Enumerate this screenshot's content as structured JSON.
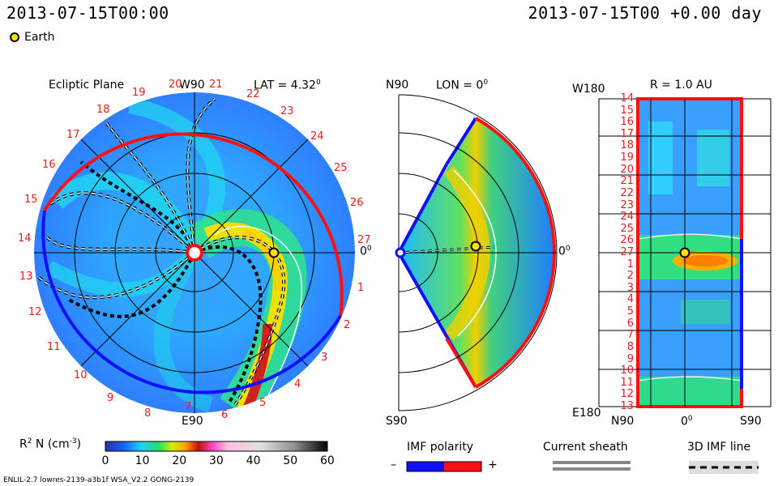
{
  "header": {
    "left_timestamp": "2013-07-15T00:00",
    "right_timestamp": "2013-07-15T00 +0.00 day",
    "earth_legend": "Earth"
  },
  "colors": {
    "earth": "#ffe000",
    "imf_negative": "#1010ff",
    "imf_positive": "#ff1010",
    "longitude_labels": "#e02020"
  },
  "ecliptic_panel": {
    "title": "Ecliptic Plane",
    "lat_label": "LAT = 4.32",
    "lat_degree": "0",
    "top_label": "W90",
    "bottom_label": "E90",
    "right_label": "0",
    "right_degree": "0",
    "carrington_longitudes": [
      "19",
      "20",
      "21",
      "22",
      "23",
      "24",
      "25",
      "26",
      "27",
      "1",
      "2",
      "3",
      "4",
      "5",
      "6",
      "7",
      "8",
      "9",
      "10",
      "11",
      "12",
      "13",
      "14",
      "15",
      "16",
      "17",
      "18"
    ]
  },
  "meridional_panel": {
    "top_label": "N90",
    "lon_label": "LON = 0",
    "lon_degree": "0",
    "bottom_label": "S90",
    "right_label": "0",
    "right_degree": "0"
  },
  "radial_panel": {
    "title": "R = 1.0 AU",
    "top_left_label": "W180",
    "bottom_left_label": "E180",
    "x_labels": [
      "N90",
      "0",
      "S90"
    ],
    "x_degree": "0",
    "y_labels": [
      "14",
      "15",
      "16",
      "17",
      "18",
      "19",
      "20",
      "21",
      "22",
      "23",
      "24",
      "25",
      "26",
      "27",
      "1",
      "2",
      "3",
      "4",
      "5",
      "6",
      "7",
      "8",
      "9",
      "10",
      "11",
      "12",
      "13"
    ]
  },
  "colorbar": {
    "label": "R",
    "label_sup": "2",
    "label_rest": " N (cm",
    "label_sup2": "-3",
    "label_close": ")",
    "ticks": [
      "0",
      "10",
      "20",
      "30",
      "40",
      "50",
      "60"
    ],
    "range": [
      0,
      60
    ]
  },
  "legends": {
    "imf_title": "IMF polarity",
    "imf_minus": "–",
    "imf_plus": "+",
    "sheath_title": "Current sheath",
    "imf_line_title": "3D IMF line"
  },
  "footer": {
    "model_info": "ENLIL-2.7 lowres-2139-a3b1f WSA_V2.2 GONG-2139"
  }
}
